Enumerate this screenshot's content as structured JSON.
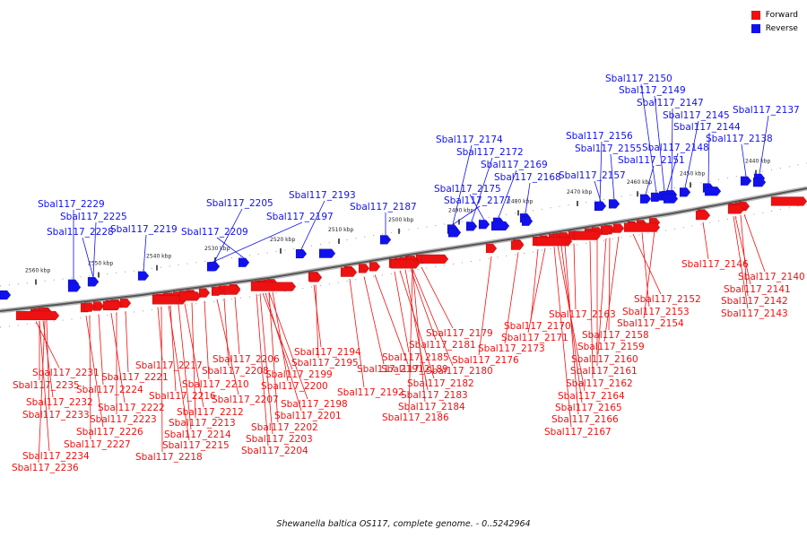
{
  "legend": {
    "forward": {
      "label": "Forward",
      "color": "#ee1111"
    },
    "reverse": {
      "label": "Reverse",
      "color": "#1111ee"
    }
  },
  "caption": "Shewanella baltica OS117, complete genome. - 0..5242964",
  "ticks": [
    "2560 kbp",
    "2550 kbp",
    "2540 kbp",
    "2530 kbp",
    "2520 kbp",
    "2510 kbp",
    "2500 kbp",
    "2490 kbp",
    "2480 kbp",
    "2470 kbp",
    "2460 kbp",
    "2450 kbp",
    "2440 kbp"
  ],
  "reverse_genes": [
    "Sbal117_2229",
    "Sbal117_2225",
    "Sbal117_2228",
    "Sbal117_2219",
    "Sbal117_2205",
    "Sbal117_2209",
    "Sbal117_2197",
    "Sbal117_2193",
    "Sbal117_2187",
    "Sbal117_2174",
    "Sbal117_2172",
    "Sbal117_2175",
    "Sbal117_2177",
    "Sbal117_2169",
    "Sbal117_2168",
    "Sbal117_2156",
    "Sbal117_2155",
    "Sbal117_2157",
    "Sbal117_2150",
    "Sbal117_2149",
    "Sbal117_2147",
    "Sbal117_2151",
    "Sbal117_2148",
    "Sbal117_2145",
    "Sbal117_2144",
    "Sbal117_2137",
    "Sbal117_2138"
  ],
  "forward_genes": [
    "Sbal117_2231",
    "Sbal117_2235",
    "Sbal117_2232",
    "Sbal117_2233",
    "Sbal117_2234",
    "Sbal117_2236",
    "Sbal117_2217",
    "Sbal117_2221",
    "Sbal117_2224",
    "Sbal117_2222",
    "Sbal117_2223",
    "Sbal117_2226",
    "Sbal117_2227",
    "Sbal117_2216",
    "Sbal117_2210",
    "Sbal117_2212",
    "Sbal117_2213",
    "Sbal117_2214",
    "Sbal117_2215",
    "Sbal117_2218",
    "Sbal117_2206",
    "Sbal117_2208",
    "Sbal117_2207",
    "Sbal117_2194",
    "Sbal117_2195",
    "Sbal117_2199",
    "Sbal117_2200",
    "Sbal117_2198",
    "Sbal117_2201",
    "Sbal117_2202",
    "Sbal117_2203",
    "Sbal117_2204",
    "Sbal117_2191",
    "Sbal117_2192",
    "Sbal117_2189",
    "Sbal117_2185",
    "Sbal117_2181",
    "Sbal117_2179",
    "Sbal117_2180",
    "Sbal117_2182",
    "Sbal117_2183",
    "Sbal117_2184",
    "Sbal117_2186",
    "Sbal117_2176",
    "Sbal117_2173",
    "Sbal117_2170",
    "Sbal117_2171",
    "Sbal117_2163",
    "Sbal117_2152",
    "Sbal117_2153",
    "Sbal117_2154",
    "Sbal117_2158",
    "Sbal117_2159",
    "Sbal117_2160",
    "Sbal117_2161",
    "Sbal117_2162",
    "Sbal117_2164",
    "Sbal117_2165",
    "Sbal117_2166",
    "Sbal117_2167",
    "Sbal117_2146",
    "Sbal117_2140",
    "Sbal117_2141",
    "Sbal117_2142",
    "Sbal117_2143"
  ]
}
